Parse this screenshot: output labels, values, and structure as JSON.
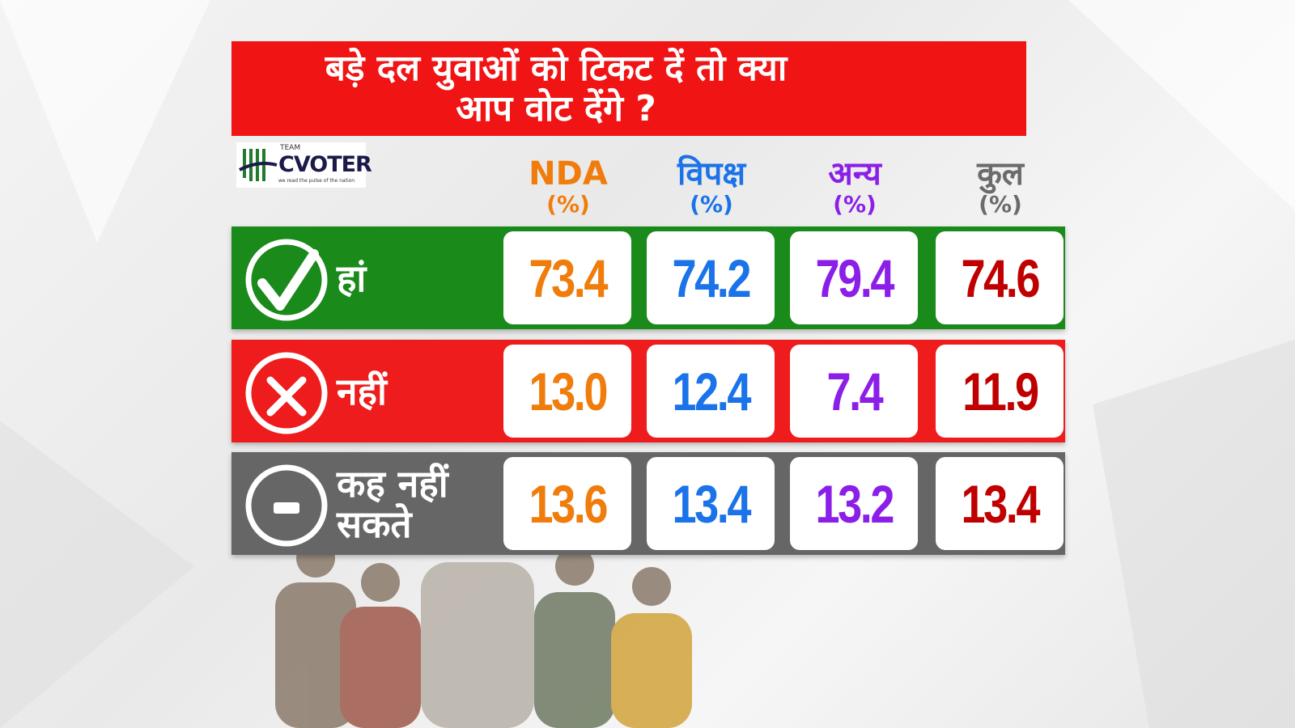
{
  "header": {
    "title_lines": [
      "बड़े दल युवाओं को टिकट दें तो क्या",
      "आप वोट देंगे ?"
    ]
  },
  "logo": {
    "top": "TEAM",
    "name": "CVOTER",
    "tagline": "we read the pulse of the nation"
  },
  "table": {
    "columns": [
      {
        "name": "NDA",
        "unit": "(%)",
        "color": "#f07c0c",
        "value_color": "#f07c0c"
      },
      {
        "name": "विपक्ष",
        "unit": "(%)",
        "color": "#1a73e8",
        "value_color": "#1a73e8"
      },
      {
        "name": "अन्य",
        "unit": "(%)",
        "color": "#8b1fe8",
        "value_color": "#8b1fe8"
      },
      {
        "name": "कुल",
        "unit": "(%)",
        "color": "#6b6b6b",
        "value_color": "#c00000"
      }
    ],
    "rows": [
      {
        "label_lines": [
          "हां"
        ],
        "color": "#1a8a1a",
        "icon": "check",
        "values": [
          "73.4",
          "74.2",
          "79.4",
          "74.6"
        ]
      },
      {
        "label_lines": [
          "नहीं"
        ],
        "color": "#ee1c1c",
        "icon": "cross",
        "values": [
          "13.0",
          "12.4",
          "7.4",
          "11.9"
        ]
      },
      {
        "label_lines": [
          "कह नहीं",
          "सकते"
        ],
        "color": "#666666",
        "icon": "minus",
        "values": [
          "13.6",
          "13.4",
          "13.2",
          "13.4"
        ]
      }
    ]
  }
}
